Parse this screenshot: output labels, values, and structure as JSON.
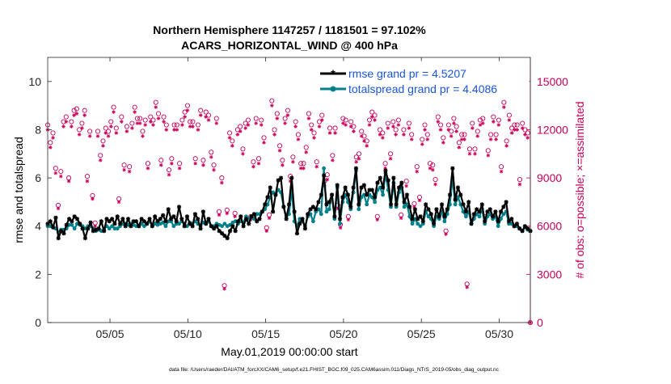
{
  "chart_data": {
    "type": "line",
    "title_line1": "Northern Hemisphere 1147257 / 1181501 = 97.102%",
    "title_line2": "ACARS_HORIZONTAL_WIND @ 400 hPa",
    "xlabel": "May.01,2019 00:00:00 start",
    "ylabel_left": "rmse and totalspread",
    "ylabel_right": "# of obs: o=possible; ×=assimilated",
    "footer": "data file: /Users/raeder/DAI/ATM_forcXX/CAM6_setup/f.e21.FHIST_BGC.f09_025.CAM6assim.011/Diags_NTrS_2019-05/obs_diag_output.nc",
    "xlim": [
      1.0,
      32.0
    ],
    "ylim_left": [
      0,
      11
    ],
    "ylim_right": [
      0,
      16500
    ],
    "x_ticks": [
      5,
      10,
      15,
      20,
      25,
      30
    ],
    "x_tick_labels": [
      "05/05",
      "05/10",
      "05/15",
      "05/20",
      "05/25",
      "05/30"
    ],
    "y_ticks_left": [
      0,
      2,
      4,
      6,
      8,
      10
    ],
    "y_ticks_right": [
      0,
      3000,
      6000,
      9000,
      12000,
      15000
    ],
    "y_tick_labels_right": [
      "0",
      "3000",
      "6000",
      "9000",
      "12000",
      "15000"
    ],
    "legend": [
      "rmse grand pr = 4.5207",
      "totalspread grand pr = 4.4086"
    ],
    "colors": {
      "rmse": "#000000",
      "spread": "#00808a",
      "obs": "#c8005a",
      "legend_text": "#1a56db"
    },
    "series": [
      {
        "name": "rmse",
        "values": [
          4.1,
          4.2,
          3.95,
          4.35,
          3.5,
          3.8,
          3.7,
          4.05,
          4.3,
          4.2,
          4.4,
          4.3,
          4.1,
          3.9,
          3.5,
          3.9,
          4.15,
          3.8,
          3.85,
          3.9,
          4.2,
          3.8,
          4.3,
          4.2,
          4.3,
          4.1,
          4.4,
          4.1,
          4.3,
          4.0,
          4.3,
          4.0,
          4.2,
          4.2,
          4.0,
          4.3,
          4.2,
          4.1,
          4.3,
          4.0,
          4.4,
          4.2,
          4.3,
          4.45,
          4.2,
          4.7,
          4.3,
          4.4,
          4.2,
          4.8,
          4.3,
          4.0,
          4.4,
          4.1,
          4.0,
          4.5,
          4.3,
          3.9,
          4.6,
          4.1,
          4.3,
          4.0,
          3.9,
          4.0,
          3.8,
          3.7,
          3.6,
          3.5,
          3.8,
          4.0,
          3.8,
          4.2,
          4.4,
          4.0,
          4.3,
          4.1,
          4.4,
          4.5,
          4.2,
          4.3,
          4.6,
          4.9,
          5.2,
          5.6,
          4.6,
          5.3,
          5.9,
          6.0,
          4.8,
          4.3,
          4.9,
          6.0,
          4.6,
          3.7,
          4.1,
          4.3,
          3.9,
          4.5,
          4.7,
          4.8,
          4.7,
          5.0,
          5.3,
          6.1,
          4.9,
          5.0,
          5.3,
          4.4,
          5.7,
          4.3,
          5.2,
          5.6,
          5.3,
          4.8,
          5.6,
          6.4,
          4.9,
          5.6,
          5.7,
          5.3,
          5.5,
          5.5,
          5.2,
          5.8,
          6.0,
          5.6,
          6.3,
          5.9,
          4.9,
          6.0,
          4.9,
          5.6,
          5.8,
          5.0,
          5.3,
          4.8,
          4.3,
          4.7,
          4.3,
          4.4,
          4.2,
          4.9,
          4.7,
          4.5,
          4.1,
          4.7,
          4.4,
          4.9,
          4.4,
          4.7,
          5.3,
          6.4,
          5.1,
          5.6,
          5.3,
          4.9,
          4.6,
          5.0,
          4.1,
          4.5,
          4.7,
          4.6,
          4.9,
          4.2,
          4.6,
          4.7,
          4.4,
          4.6,
          4.2,
          4.6,
          4.8,
          5.0,
          4.2,
          4.3,
          4.0,
          4.1,
          3.9,
          3.8,
          4.0,
          3.9,
          3.8
        ]
      },
      {
        "name": "totalspread",
        "values": [
          4.0,
          4.0,
          3.95,
          3.9,
          3.75,
          3.85,
          3.85,
          3.9,
          4.05,
          4.05,
          3.9,
          4.1,
          4.05,
          4.0,
          3.9,
          4.0,
          4.0,
          3.9,
          3.8,
          3.85,
          3.8,
          3.85,
          4.0,
          3.9,
          4.0,
          3.9,
          3.9,
          4.0,
          4.1,
          4.1,
          4.05,
          4.1,
          4.05,
          4.0,
          4.0,
          4.1,
          4.0,
          4.1,
          4.2,
          4.0,
          4.1,
          4.05,
          4.1,
          4.15,
          4.0,
          4.2,
          4.2,
          4.0,
          4.1,
          4.1,
          4.2,
          4.1,
          4.0,
          4.15,
          4.1,
          4.2,
          4.1,
          4.0,
          4.15,
          4.1,
          4.2,
          4.0,
          4.0,
          4.1,
          4.05,
          4.0,
          4.1,
          4.0,
          4.05,
          4.15,
          4.2,
          4.1,
          4.2,
          4.15,
          4.4,
          4.3,
          4.4,
          4.3,
          4.5,
          4.5,
          4.6,
          4.7,
          4.9,
          5.2,
          5.4,
          5.3,
          5.5,
          5.4,
          4.8,
          4.4,
          4.5,
          5.5,
          4.2,
          4.0,
          4.3,
          4.2,
          4.0,
          4.4,
          4.5,
          4.2,
          4.6,
          4.7,
          4.5,
          6.4,
          4.6,
          4.7,
          5.3,
          4.3,
          5.6,
          4.1,
          5.0,
          5.3,
          5.0,
          4.7,
          5.4,
          6.3,
          4.7,
          5.2,
          5.3,
          4.9,
          5.3,
          5.2,
          5.0,
          5.5,
          5.6,
          5.3,
          6.2,
          5.5,
          4.8,
          5.8,
          4.8,
          5.4,
          5.6,
          4.8,
          4.9,
          4.4,
          4.1,
          4.3,
          4.1,
          4.0,
          4.1,
          4.6,
          4.4,
          4.3,
          4.0,
          4.4,
          4.3,
          4.6,
          4.2,
          4.5,
          4.9,
          6.0,
          4.9,
          5.2,
          4.9,
          4.6,
          4.4,
          4.6,
          4.1,
          4.3,
          4.5,
          4.4,
          4.7,
          4.1,
          4.4,
          4.5,
          4.3,
          4.4,
          4.0,
          4.3,
          4.5,
          4.6,
          4.1,
          4.1,
          4.0,
          4.0,
          3.9,
          3.8,
          3.95,
          3.85,
          3.8
        ]
      },
      {
        "name": "obs_possible",
        "values": [
          12300,
          11200,
          11800,
          9600,
          7300,
          9400,
          12500,
          12800,
          9000,
          12500,
          13200,
          13300,
          12000,
          12400,
          13200,
          9100,
          11900,
          7900,
          6200,
          11900,
          10400,
          11300,
          12100,
          11900,
          12500,
          13400,
          12100,
          7700,
          12800,
          9800,
          12200,
          9700,
          12400,
          13400,
          12700,
          12700,
          11900,
          12600,
          9900,
          12800,
          12600,
          13700,
          13000,
          10100,
          12800,
          12300,
          9500,
          10200,
          12300,
          12300,
          9900,
          12600,
          13100,
          13500,
          12500,
          12500,
          10200,
          12300,
          13200,
          10100,
          13100,
          12900,
          10600,
          9800,
          12700,
          6900,
          9000,
          2300,
          7000,
          11800,
          11300,
          6800,
          12000,
          12200,
          10800,
          12400,
          12600,
          6600,
          10000,
          12700,
          10200,
          12600,
          11500,
          5900,
          6700,
          13800,
          12000,
          13000,
          11000,
          10100,
          12700,
          13200,
          9100,
          10300,
          12500,
          11700,
          9900,
          9900,
          10900,
          13000,
          12300,
          11800,
          10000,
          12500,
          12900,
          8800,
          9200,
          12100,
          10400,
          12100,
          7300,
          6100,
          12700,
          12600,
          6600,
          12500,
          12200,
          10300,
          10500,
          11900,
          11600,
          11300,
          12600,
          13100,
          12900,
          6600,
          12000,
          11800,
          9900,
          12400,
          10500,
          12500,
          12000,
          12600,
          6700,
          12000,
          8800,
          12400,
          11700,
          7400,
          9700,
          7800,
          11400,
          12300,
          11700,
          9900,
          9800,
          8900,
          12800,
          12300,
          11500,
          5700,
          12300,
          11900,
          12700,
          12200,
          11200,
          11700,
          11700,
          2400,
          10800,
          12400,
          10800,
          11900,
          12600,
          12700,
          6600,
          10700,
          11700,
          12800,
          11700,
          12600,
          9700,
          13700,
          11300,
          12900,
          12100,
          12300,
          12300,
          8900,
          12400,
          12000,
          11800,
          0
        ]
      },
      {
        "name": "obs_assimilated",
        "values": [
          12000,
          10900,
          11500,
          9300,
          7100,
          9100,
          12200,
          12500,
          8800,
          12200,
          12900,
          13000,
          11700,
          12100,
          12900,
          8800,
          11600,
          7700,
          6000,
          11600,
          10100,
          11000,
          11800,
          11600,
          12200,
          13100,
          11800,
          7500,
          12500,
          9500,
          11900,
          9400,
          12100,
          13100,
          12400,
          12400,
          11600,
          12300,
          9600,
          12500,
          12300,
          13400,
          12700,
          9800,
          12500,
          12000,
          9200,
          9900,
          12000,
          12000,
          9600,
          12300,
          12800,
          13200,
          12200,
          12200,
          9900,
          12000,
          12900,
          9800,
          12800,
          12600,
          10300,
          9500,
          12400,
          6700,
          8700,
          2100,
          6800,
          11500,
          11000,
          6600,
          11700,
          11900,
          10500,
          12100,
          12300,
          6400,
          9700,
          12400,
          9900,
          12300,
          11200,
          5700,
          6500,
          13500,
          11700,
          12700,
          10700,
          9800,
          12400,
          12900,
          8800,
          10000,
          12200,
          11400,
          9600,
          9600,
          10600,
          12700,
          12000,
          11500,
          9700,
          12200,
          12600,
          8500,
          8900,
          11800,
          10100,
          11800,
          7100,
          5900,
          12400,
          12300,
          6400,
          12200,
          11900,
          10000,
          10200,
          11600,
          11300,
          11000,
          12300,
          12800,
          12600,
          6400,
          11700,
          11500,
          9600,
          12100,
          10200,
          12200,
          11700,
          12300,
          6500,
          11700,
          8500,
          12100,
          11400,
          7200,
          9400,
          7600,
          11100,
          12000,
          11400,
          9600,
          9500,
          8600,
          12500,
          12000,
          11200,
          5500,
          12000,
          11600,
          12400,
          11900,
          10900,
          11400,
          11400,
          2200,
          10500,
          12100,
          10500,
          11600,
          12300,
          12400,
          6400,
          10400,
          11400,
          12500,
          11400,
          12300,
          9400,
          13400,
          11000,
          12600,
          11800,
          12000,
          12000,
          8600,
          12100,
          11700,
          11500,
          0
        ]
      }
    ]
  }
}
